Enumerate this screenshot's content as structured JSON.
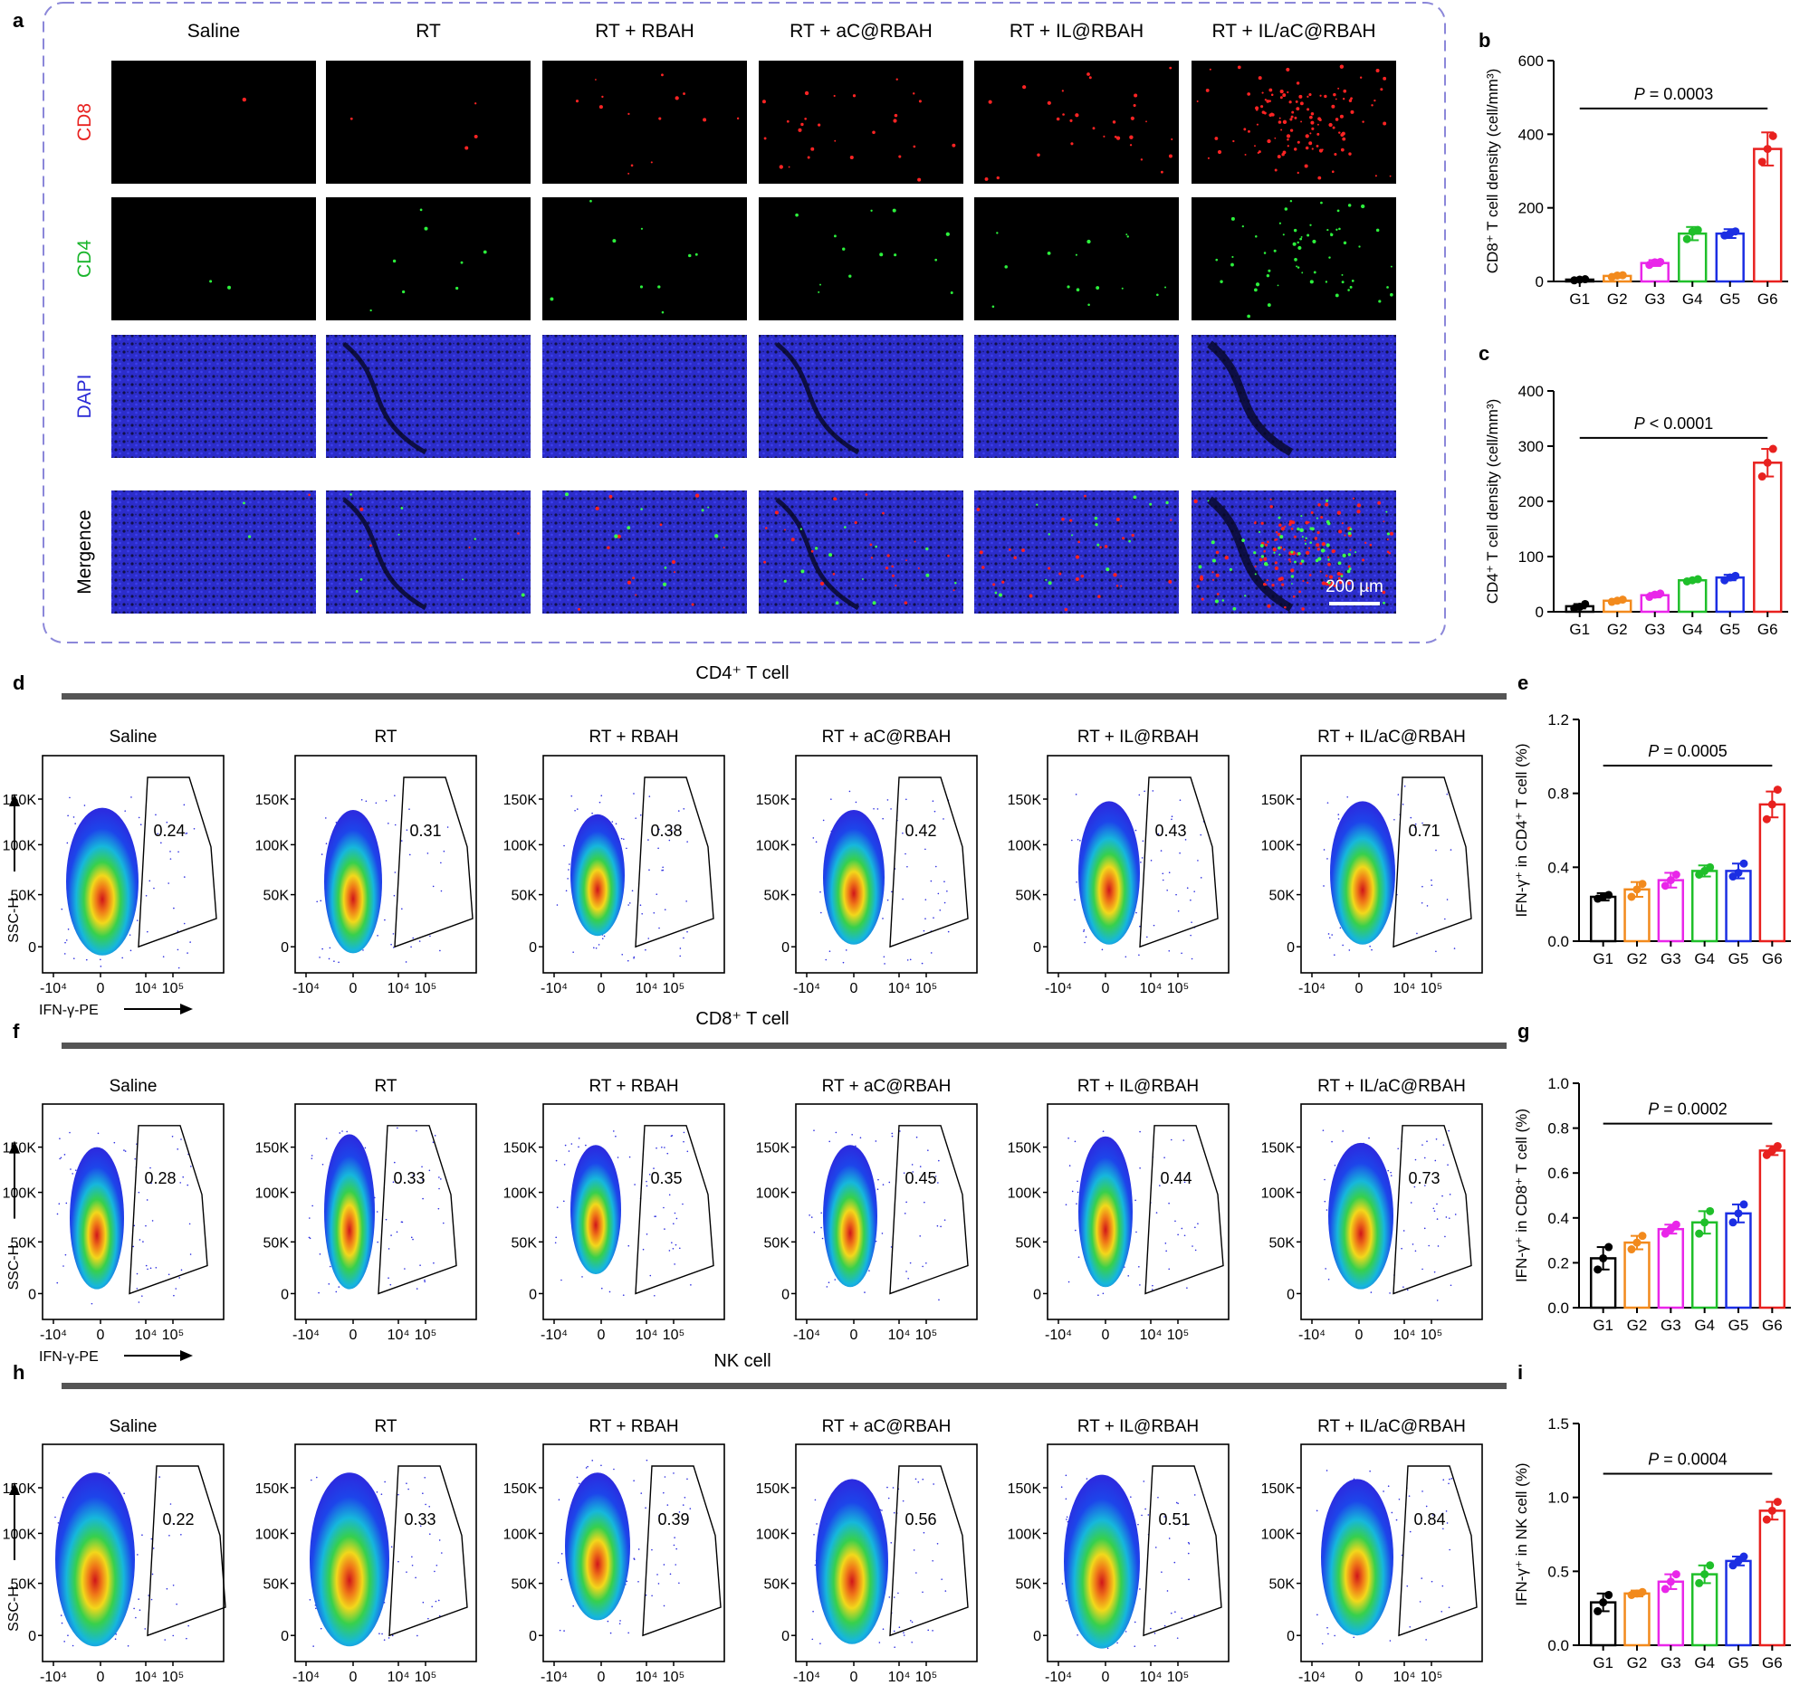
{
  "panel_letters": {
    "a": "a",
    "b": "b",
    "c": "c",
    "d": "d",
    "e": "e",
    "f": "f",
    "g": "g",
    "h": "h",
    "i": "i"
  },
  "groups": [
    "Saline",
    "RT",
    "RT + RBAH",
    "RT + aC@RBAH",
    "RT + IL@RBAH",
    "RT + IL/aC@RBAH"
  ],
  "if_rows": [
    {
      "label": "CD8",
      "color": "#e8211f",
      "channel": "red"
    },
    {
      "label": "CD4",
      "color": "#19b52b",
      "channel": "green"
    },
    {
      "label": "DAPI",
      "color": "#2a2ad6",
      "channel": "blue"
    },
    {
      "label": "Mergence",
      "color": "#000000",
      "channel": "merge"
    }
  ],
  "scale_bar": "200 µm",
  "dot_density": {
    "CD8": [
      1,
      4,
      14,
      26,
      30,
      120
    ],
    "CD4": [
      2,
      8,
      9,
      13,
      15,
      60
    ]
  },
  "colors": {
    "G1": "#000000",
    "G2": "#f28a1d",
    "G3": "#e926e9",
    "G4": "#1fbf2a",
    "G5": "#1b2ee3",
    "G6": "#e8211f",
    "panel_border": "#8b87d9",
    "section_bar": "#555555"
  },
  "flow": {
    "xticks": [
      "-10⁴",
      "0",
      "10⁴",
      "10⁵"
    ],
    "yticks": [
      "0",
      "50K",
      "100K",
      "150K"
    ],
    "xlabel": "IFN-γ-PE",
    "ylabel": "SSC-H",
    "rows": [
      {
        "title": "CD4⁺ T cell",
        "values": [
          "0.24",
          "0.31",
          "0.38",
          "0.42",
          "0.43",
          "0.71"
        ]
      },
      {
        "title": "CD8⁺  T cell",
        "values": [
          "0.28",
          "0.33",
          "0.35",
          "0.45",
          "0.44",
          "0.73"
        ]
      },
      {
        "title": "NK cell",
        "values": [
          "0.22",
          "0.33",
          "0.39",
          "0.56",
          "0.51",
          "0.84"
        ]
      }
    ]
  },
  "chart_data": [
    {
      "panel": "b",
      "type": "bar",
      "categories": [
        "G1",
        "G2",
        "G3",
        "G4",
        "G5",
        "G6"
      ],
      "values": [
        5,
        15,
        50,
        130,
        130,
        360
      ],
      "error": [
        3,
        5,
        8,
        18,
        12,
        45
      ],
      "points": [
        [
          3,
          5,
          6
        ],
        [
          12,
          16,
          17
        ],
        [
          45,
          52,
          53
        ],
        [
          115,
          135,
          140
        ],
        [
          125,
          130,
          136
        ],
        [
          325,
          360,
          395
        ]
      ],
      "ylabel": "CD8⁺ T cell density (cell/mm³)",
      "ylim": [
        0,
        600
      ],
      "yticks": [
        "0",
        "200",
        "400",
        "600"
      ],
      "p_value": "P = 0.0003",
      "p_y": 470
    },
    {
      "panel": "c",
      "type": "bar",
      "categories": [
        "G1",
        "G2",
        "G3",
        "G4",
        "G5",
        "G6"
      ],
      "values": [
        10,
        20,
        30,
        57,
        62,
        270
      ],
      "error": [
        4,
        3,
        4,
        3,
        5,
        25
      ],
      "points": [
        [
          6,
          9,
          14
        ],
        [
          18,
          20,
          22
        ],
        [
          27,
          31,
          33
        ],
        [
          55,
          57,
          59
        ],
        [
          57,
          62,
          65
        ],
        [
          245,
          270,
          295
        ]
      ],
      "ylabel": "CD4⁺ T cell density (cell/mm³)",
      "ylim": [
        0,
        400
      ],
      "yticks": [
        "0",
        "100",
        "200",
        "300",
        "400"
      ],
      "p_value": "P < 0.0001",
      "p_y": 315
    },
    {
      "panel": "e",
      "type": "bar",
      "categories": [
        "G1",
        "G2",
        "G3",
        "G4",
        "G5",
        "G6"
      ],
      "values": [
        0.24,
        0.28,
        0.33,
        0.38,
        0.38,
        0.74
      ],
      "error": [
        0.02,
        0.04,
        0.04,
        0.03,
        0.04,
        0.07
      ],
      "points": [
        [
          0.23,
          0.24,
          0.25
        ],
        [
          0.24,
          0.28,
          0.31
        ],
        [
          0.3,
          0.33,
          0.36
        ],
        [
          0.36,
          0.38,
          0.4
        ],
        [
          0.35,
          0.37,
          0.42
        ],
        [
          0.66,
          0.74,
          0.82
        ]
      ],
      "ylabel": "IFN-γ⁺ in CD4⁺ T cell (%)",
      "ylim": [
        0,
        1.2
      ],
      "yticks": [
        "0.0",
        "0.4",
        "0.8",
        "1.2"
      ],
      "p_value": "P = 0.0005",
      "p_y": 0.95
    },
    {
      "panel": "g",
      "type": "bar",
      "categories": [
        "G1",
        "G2",
        "G3",
        "G4",
        "G5",
        "G6"
      ],
      "values": [
        0.22,
        0.29,
        0.35,
        0.38,
        0.42,
        0.7
      ],
      "error": [
        0.05,
        0.03,
        0.02,
        0.05,
        0.04,
        0.02
      ],
      "points": [
        [
          0.17,
          0.22,
          0.27
        ],
        [
          0.26,
          0.29,
          0.32
        ],
        [
          0.33,
          0.35,
          0.37
        ],
        [
          0.33,
          0.38,
          0.43
        ],
        [
          0.38,
          0.42,
          0.46
        ],
        [
          0.68,
          0.7,
          0.72
        ]
      ],
      "ylabel": "IFN-γ⁺ in CD8⁺ T cell (%)",
      "ylim": [
        0,
        1.0
      ],
      "yticks": [
        "0.0",
        "0.2",
        "0.4",
        "0.6",
        "0.8",
        "1.0"
      ],
      "p_value": "P = 0.0002",
      "p_y": 0.82
    },
    {
      "panel": "i",
      "type": "bar",
      "categories": [
        "G1",
        "G2",
        "G3",
        "G4",
        "G5",
        "G6"
      ],
      "values": [
        0.29,
        0.35,
        0.43,
        0.48,
        0.57,
        0.91
      ],
      "error": [
        0.06,
        0.02,
        0.05,
        0.06,
        0.03,
        0.06
      ],
      "points": [
        [
          0.23,
          0.29,
          0.34
        ],
        [
          0.34,
          0.35,
          0.36
        ],
        [
          0.38,
          0.43,
          0.48
        ],
        [
          0.42,
          0.48,
          0.54
        ],
        [
          0.54,
          0.57,
          0.6
        ],
        [
          0.85,
          0.91,
          0.97
        ]
      ],
      "ylabel": "IFN-γ⁺ in NK cell (%)",
      "ylim": [
        0,
        1.5
      ],
      "yticks": [
        "0.0",
        "0.5",
        "1.0",
        "1.5"
      ],
      "p_value": "P = 0.0004",
      "p_y": 1.16
    }
  ]
}
